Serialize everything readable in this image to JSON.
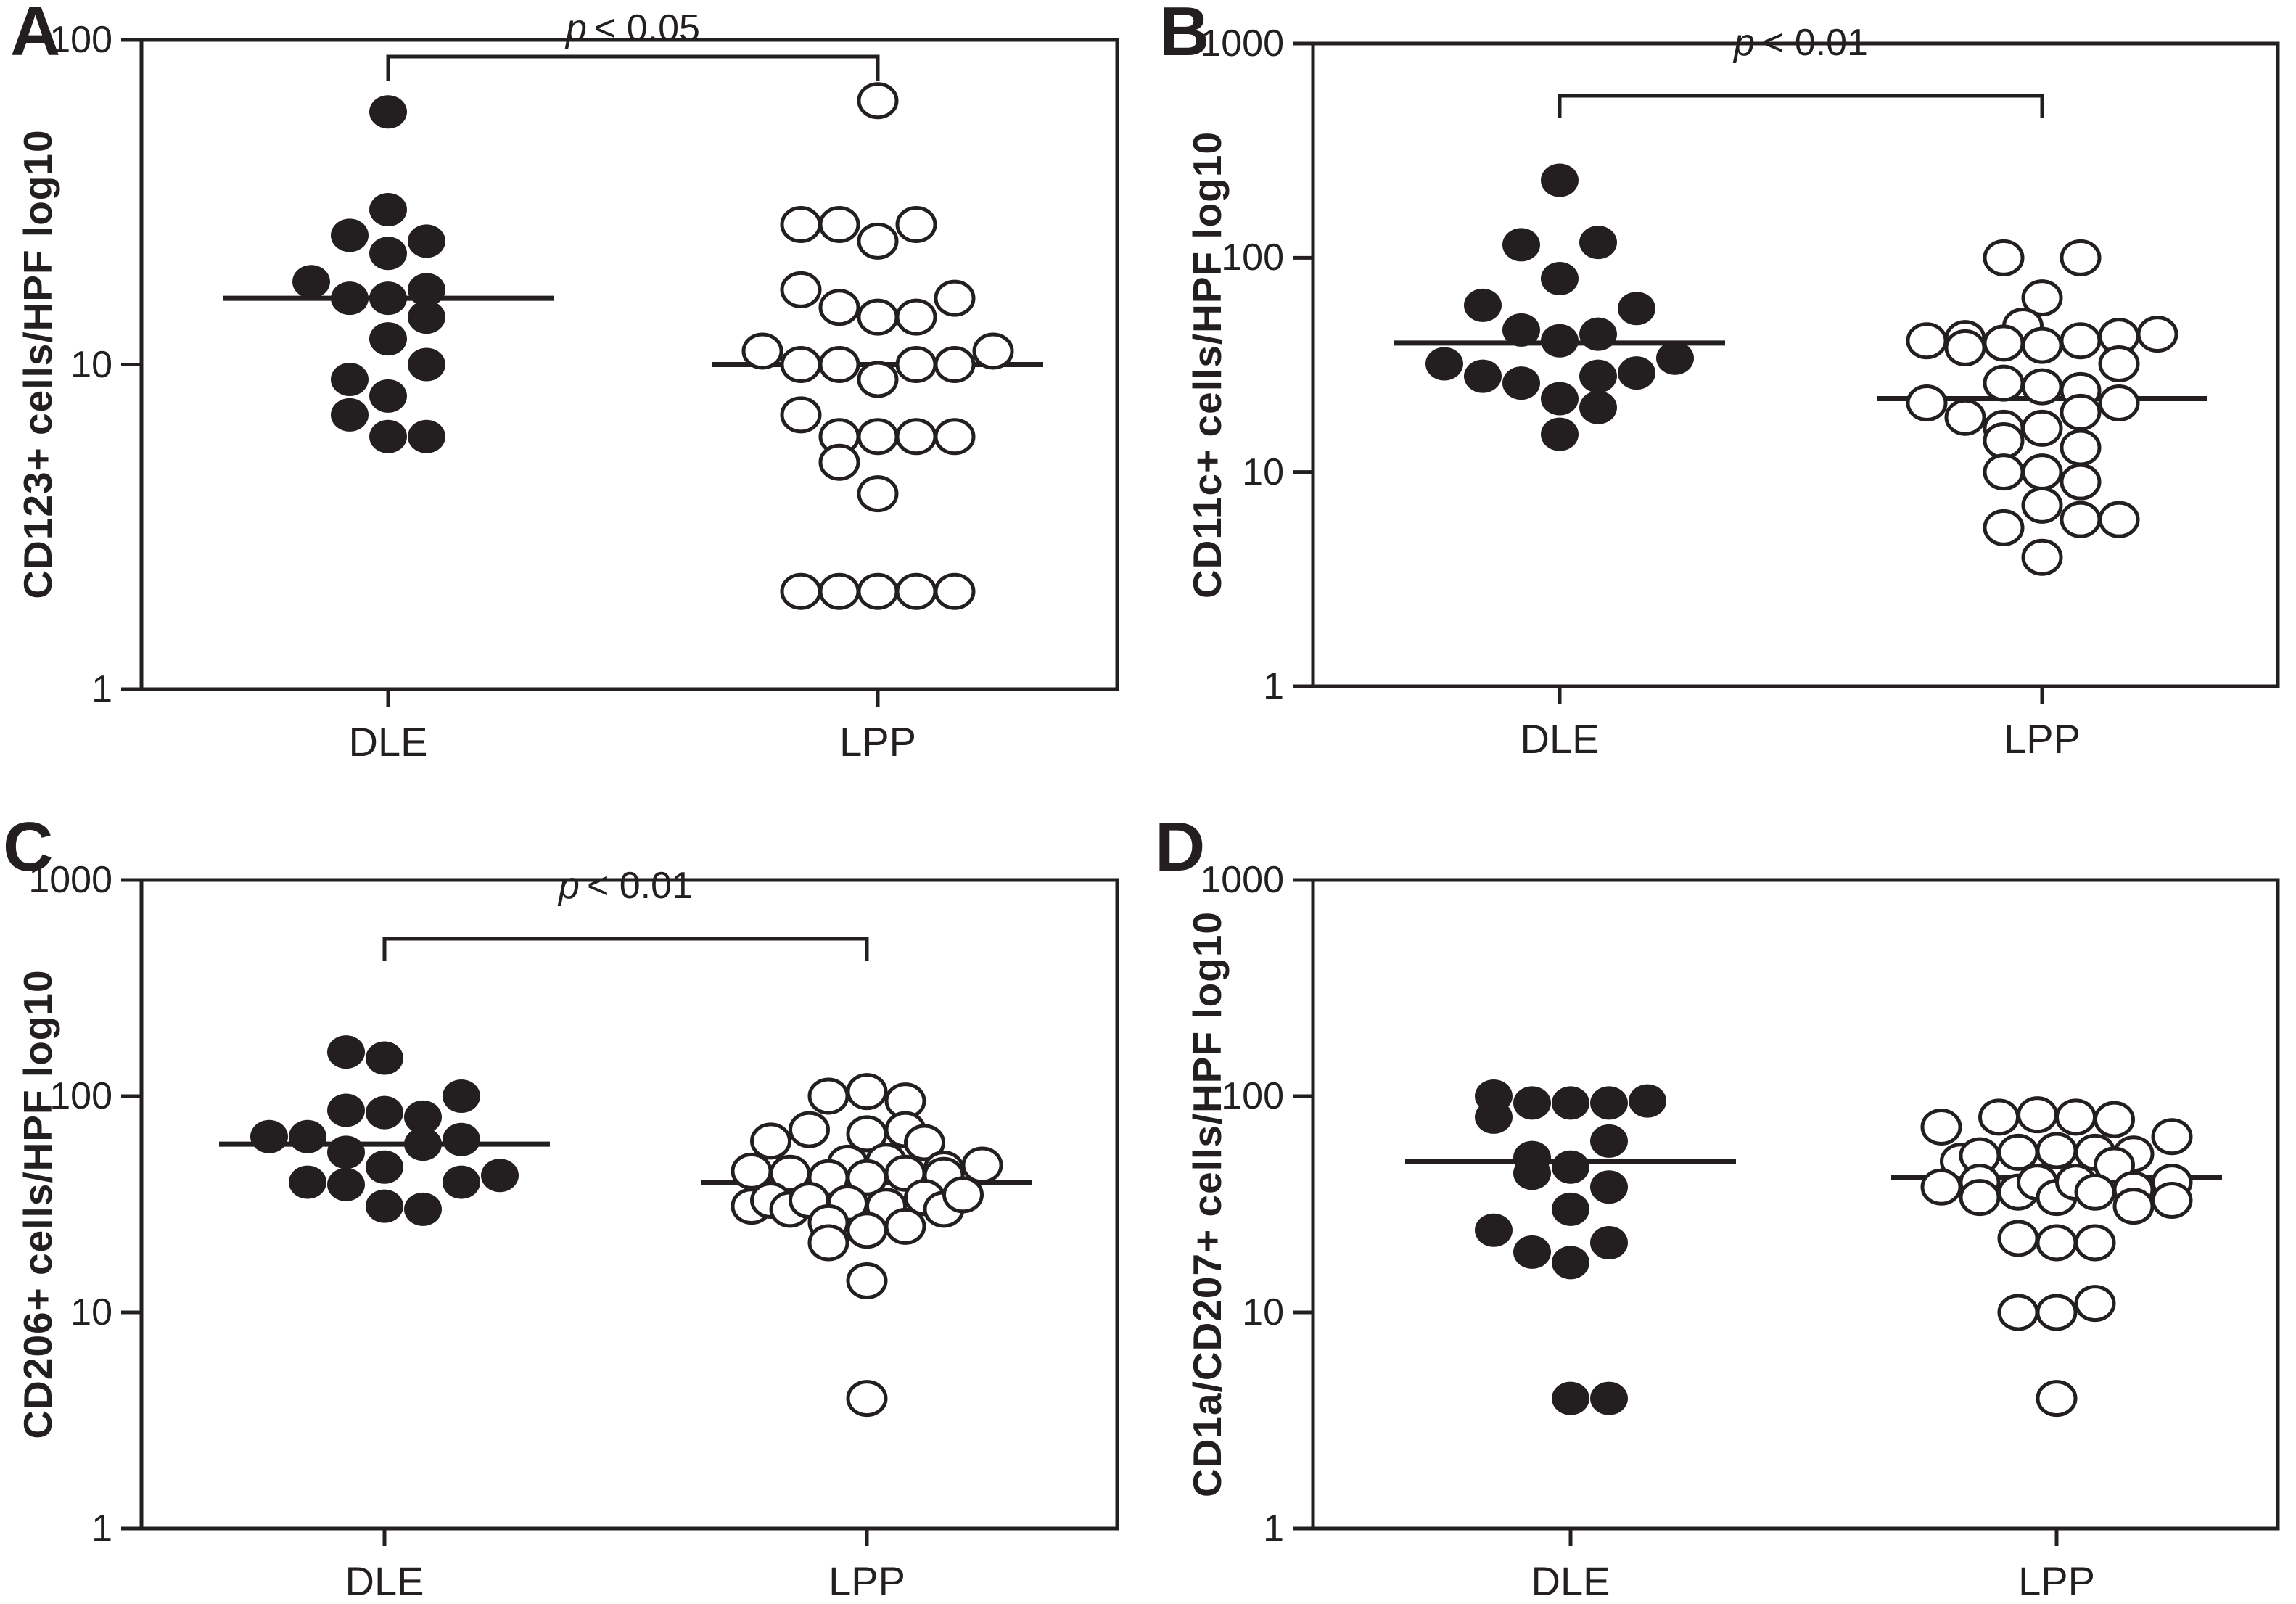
{
  "figure": {
    "background": "#ffffff",
    "ink_color": "#231f20",
    "marker_filled_color": "#231f20",
    "marker_open_fill": "#ffffff"
  },
  "chart_data": [
    {
      "type": "scatter",
      "letter": "A",
      "ylabel": "CD123+ cells/HPF log10",
      "yticks": [
        100,
        10,
        1
      ],
      "ylim": [
        1,
        100
      ],
      "log_scale": true,
      "grid": false,
      "categories": [
        "DLE",
        "LPP"
      ],
      "significance": {
        "p_symbol": "p",
        "comparison": "< 0.05"
      },
      "series": [
        {
          "name": "DLE",
          "marker": "filled",
          "median": 16,
          "points": [
            [
              60,
              0
            ],
            [
              30,
              0
            ],
            [
              25,
              -1
            ],
            [
              24,
              1
            ],
            [
              22,
              0
            ],
            [
              18,
              -2
            ],
            [
              16,
              -1
            ],
            [
              16,
              0
            ],
            [
              17,
              1
            ],
            [
              14,
              1
            ],
            [
              12,
              0
            ],
            [
              10,
              1
            ],
            [
              9,
              -1
            ],
            [
              8,
              0
            ],
            [
              7,
              -1
            ],
            [
              6,
              0
            ],
            [
              6,
              1
            ]
          ]
        },
        {
          "name": "LPP",
          "marker": "open",
          "median": 10,
          "points": [
            [
              65,
              0
            ],
            [
              27,
              -2
            ],
            [
              27,
              -1
            ],
            [
              27,
              1
            ],
            [
              24,
              0
            ],
            [
              17,
              -2
            ],
            [
              16,
              2
            ],
            [
              15,
              -1
            ],
            [
              14,
              0
            ],
            [
              14,
              1
            ],
            [
              11,
              -3
            ],
            [
              10,
              -2
            ],
            [
              10,
              -1
            ],
            [
              9,
              0
            ],
            [
              10,
              1
            ],
            [
              10,
              2
            ],
            [
              11,
              3
            ],
            [
              7,
              -2
            ],
            [
              6,
              -1
            ],
            [
              5,
              -1
            ],
            [
              6,
              0
            ],
            [
              6,
              1
            ],
            [
              6,
              2
            ],
            [
              4,
              0
            ],
            [
              2,
              -2
            ],
            [
              2,
              -1
            ],
            [
              2,
              0
            ],
            [
              2,
              1
            ],
            [
              2,
              2
            ]
          ]
        }
      ]
    },
    {
      "type": "scatter",
      "letter": "B",
      "ylabel": "CD11c+ cells/HPF log10",
      "yticks": [
        1000,
        100,
        10,
        1
      ],
      "ylim": [
        1,
        1000
      ],
      "log_scale": true,
      "grid": false,
      "categories": [
        "DLE",
        "LPP"
      ],
      "significance": {
        "p_symbol": "p",
        "comparison": "< 0.01"
      },
      "series": [
        {
          "name": "DLE",
          "marker": "filled",
          "median": 40,
          "points": [
            [
              230,
              0
            ],
            [
              115,
              -1
            ],
            [
              118,
              1
            ],
            [
              80,
              0
            ],
            [
              60,
              -2
            ],
            [
              58,
              2
            ],
            [
              46,
              -1
            ],
            [
              44,
              1
            ],
            [
              41,
              0
            ],
            [
              34,
              3
            ],
            [
              32,
              -3
            ],
            [
              28,
              -2
            ],
            [
              26,
              -1
            ],
            [
              28,
              1
            ],
            [
              29,
              2
            ],
            [
              22,
              0
            ],
            [
              20,
              1
            ],
            [
              15,
              0
            ]
          ]
        },
        {
          "name": "LPP",
          "marker": "open",
          "median": 22,
          "points": [
            [
              100,
              -1
            ],
            [
              100,
              1
            ],
            [
              65,
              0
            ],
            [
              48,
              -0.5
            ],
            [
              41,
              -3
            ],
            [
              42,
              -2
            ],
            [
              38,
              -2
            ],
            [
              40,
              -1
            ],
            [
              39,
              0
            ],
            [
              41,
              1
            ],
            [
              43,
              2
            ],
            [
              44,
              3
            ],
            [
              32,
              2
            ],
            [
              26,
              -1
            ],
            [
              25,
              0
            ],
            [
              24,
              1
            ],
            [
              21,
              -3
            ],
            [
              21,
              2
            ],
            [
              18,
              -2
            ],
            [
              19,
              1
            ],
            [
              16,
              -1
            ],
            [
              14,
              -1
            ],
            [
              16,
              0
            ],
            [
              13,
              1
            ],
            [
              10,
              -1
            ],
            [
              10,
              0
            ],
            [
              9,
              1
            ],
            [
              7,
              0
            ],
            [
              5.5,
              -1
            ],
            [
              6,
              1
            ],
            [
              6,
              2
            ],
            [
              4,
              0
            ]
          ]
        }
      ]
    },
    {
      "type": "scatter",
      "letter": "C",
      "ylabel": "CD206+ cells/HPF log10",
      "yticks": [
        1000,
        100,
        10,
        1
      ],
      "ylim": [
        1,
        1000
      ],
      "log_scale": true,
      "grid": false,
      "categories": [
        "DLE",
        "LPP"
      ],
      "significance": {
        "p_symbol": "p",
        "comparison": "< 0.01"
      },
      "series": [
        {
          "name": "DLE",
          "marker": "filled",
          "median": 60,
          "points": [
            [
              160,
              -1
            ],
            [
              150,
              0
            ],
            [
              100,
              2
            ],
            [
              86,
              -1
            ],
            [
              84,
              0
            ],
            [
              80,
              1
            ],
            [
              65,
              -3
            ],
            [
              65,
              -2
            ],
            [
              63,
              2
            ],
            [
              60,
              1
            ],
            [
              55,
              -1
            ],
            [
              47,
              0
            ],
            [
              43,
              3
            ],
            [
              40,
              -2
            ],
            [
              39,
              -1
            ],
            [
              40,
              2
            ],
            [
              31,
              0
            ],
            [
              30,
              1
            ]
          ]
        },
        {
          "name": "LPP",
          "marker": "open",
          "median": 40,
          "points": [
            [
              100,
              -1
            ],
            [
              105,
              0
            ],
            [
              95,
              1
            ],
            [
              70,
              -1.5
            ],
            [
              67,
              0
            ],
            [
              70,
              1
            ],
            [
              62,
              -2.5
            ],
            [
              61,
              1.5
            ],
            [
              49,
              -0.5
            ],
            [
              50,
              0.5
            ],
            [
              46,
              2
            ],
            [
              48,
              3
            ],
            [
              45,
              -3
            ],
            [
              44,
              -2
            ],
            [
              42,
              -1
            ],
            [
              42,
              0
            ],
            [
              44,
              1
            ],
            [
              43,
              2
            ],
            [
              31,
              -3
            ],
            [
              33,
              -2.5
            ],
            [
              30,
              -2
            ],
            [
              33,
              -1.5
            ],
            [
              32,
              -0.5
            ],
            [
              31,
              0.5
            ],
            [
              34,
              1.5
            ],
            [
              30,
              2
            ],
            [
              35,
              2.5
            ],
            [
              26,
              -1
            ],
            [
              21,
              -1
            ],
            [
              24,
              0
            ],
            [
              25,
              1
            ],
            [
              14,
              0
            ],
            [
              4,
              0
            ]
          ]
        }
      ]
    },
    {
      "type": "scatter",
      "letter": "D",
      "ylabel": "CD1a/CD207+ cells/HPF log10",
      "yticks": [
        1000,
        100,
        10,
        1
      ],
      "ylim": [
        1,
        1000
      ],
      "log_scale": true,
      "grid": false,
      "categories": [
        "DLE",
        "LPP"
      ],
      "significance": null,
      "series": [
        {
          "name": "DLE",
          "marker": "filled",
          "median": 50,
          "points": [
            [
              100,
              -2
            ],
            [
              93,
              -1
            ],
            [
              93,
              0
            ],
            [
              93,
              1
            ],
            [
              95,
              2
            ],
            [
              80,
              -2
            ],
            [
              62,
              1
            ],
            [
              52,
              -1
            ],
            [
              47,
              0
            ],
            [
              44,
              -1
            ],
            [
              38,
              1
            ],
            [
              30,
              0
            ],
            [
              24,
              -2
            ],
            [
              19,
              -1
            ],
            [
              17,
              0
            ],
            [
              21,
              1
            ],
            [
              4,
              0
            ],
            [
              4,
              1
            ]
          ]
        },
        {
          "name": "LPP",
          "marker": "open",
          "median": 42,
          "points": [
            [
              72,
              -3
            ],
            [
              80,
              -1.5
            ],
            [
              82,
              -0.5
            ],
            [
              80,
              0.5
            ],
            [
              78,
              1.5
            ],
            [
              65,
              3
            ],
            [
              50,
              -2.5
            ],
            [
              53,
              -2
            ],
            [
              55,
              -1
            ],
            [
              56,
              0
            ],
            [
              55,
              1
            ],
            [
              54,
              2
            ],
            [
              48,
              1.5
            ],
            [
              38,
              -3
            ],
            [
              40,
              -2
            ],
            [
              34,
              -2
            ],
            [
              36,
              -1
            ],
            [
              40,
              -0.5
            ],
            [
              34,
              0
            ],
            [
              40,
              0.5
            ],
            [
              36,
              1
            ],
            [
              37,
              2
            ],
            [
              31,
              2
            ],
            [
              40,
              3
            ],
            [
              33,
              3
            ],
            [
              22,
              -1
            ],
            [
              21,
              0
            ],
            [
              21,
              1
            ],
            [
              10,
              -1
            ],
            [
              10,
              0
            ],
            [
              11,
              1
            ],
            [
              4,
              0
            ]
          ]
        }
      ]
    }
  ]
}
